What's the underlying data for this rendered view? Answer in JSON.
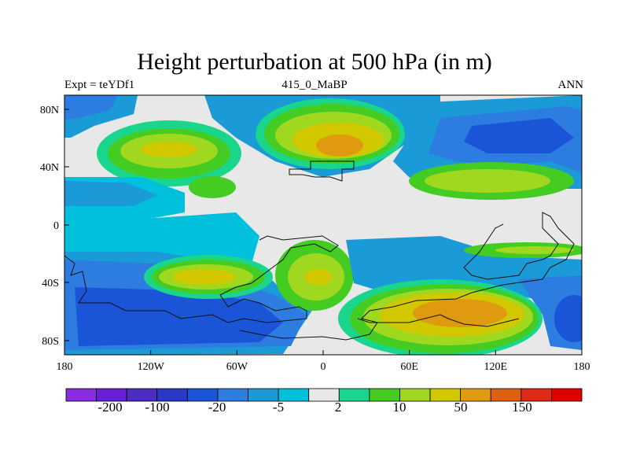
{
  "title": "Height perturbation at 500 hPa (in m)",
  "left_string": "Expt = teYDf1",
  "center_string": "415_0_MaBP",
  "right_string": "ANN",
  "x_ticks": [
    "180",
    "120W",
    "60W",
    "0",
    "60E",
    "120E",
    "180"
  ],
  "y_ticks": [
    "80N",
    "40N",
    "0",
    "40S",
    "80S"
  ],
  "colorbar": {
    "colors": [
      "#8a2be2",
      "#6a1fd6",
      "#4e2cc4",
      "#2a38c8",
      "#1a55d8",
      "#2d7ce0",
      "#1a9ad6",
      "#00c0dc",
      "#e8e8e8",
      "#19d68c",
      "#44cc22",
      "#a0d820",
      "#d2c800",
      "#e09a10",
      "#e06010",
      "#e02a18",
      "#e00000"
    ],
    "labels": [
      "-200",
      "-100",
      "-20",
      "-5",
      "2",
      "10",
      "50",
      "150"
    ]
  }
}
